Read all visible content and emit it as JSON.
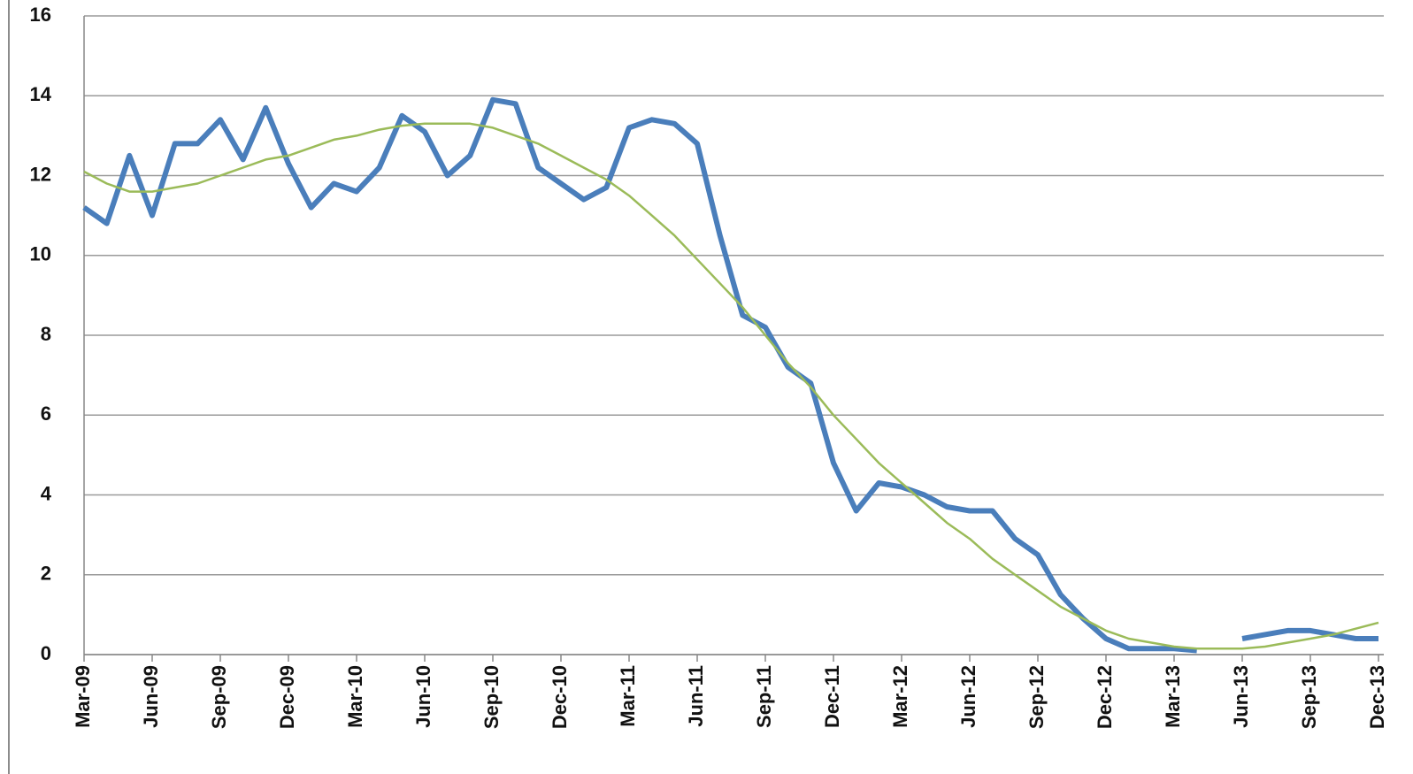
{
  "chart_data": {
    "type": "line",
    "categories": [
      "Mar-09",
      null,
      null,
      "Jun-09",
      null,
      null,
      "Sep-09",
      null,
      null,
      "Dec-09",
      null,
      null,
      "Mar-10",
      null,
      null,
      "Jun-10",
      null,
      null,
      "Sep-10",
      null,
      null,
      "Dec-10",
      null,
      null,
      "Mar-11",
      null,
      null,
      "Jun-11",
      null,
      null,
      "Sep-11",
      null,
      null,
      "Dec-11",
      null,
      null,
      "Mar-12",
      null,
      null,
      "Jun-12",
      null,
      null,
      "Sep-12",
      null,
      null,
      "Dec-12",
      null,
      null,
      "Mar-13",
      null,
      null,
      "Jun-13",
      null,
      null,
      "Sep-13",
      null,
      null,
      "Dec-13"
    ],
    "series": [
      {
        "color": "#4a7ebb",
        "width": 6,
        "values": [
          11.2,
          10.8,
          12.5,
          11.0,
          12.8,
          12.8,
          13.4,
          12.4,
          13.7,
          12.3,
          11.2,
          11.8,
          11.6,
          12.2,
          13.5,
          13.1,
          12.0,
          12.5,
          13.9,
          13.8,
          12.2,
          11.8,
          11.4,
          11.7,
          13.2,
          13.4,
          13.3,
          12.8,
          10.5,
          8.5,
          8.2,
          7.2,
          6.8,
          4.8,
          3.6,
          4.3,
          4.2,
          4.0,
          3.7,
          3.6,
          3.6,
          2.9,
          2.5,
          1.5,
          0.9,
          0.4,
          0.15,
          0.15,
          0.15,
          0.1,
          null,
          0.4,
          0.5,
          0.6,
          0.6,
          0.5,
          0.4,
          0.4
        ]
      },
      {
        "color": "#9bbb59",
        "width": 2.5,
        "values": [
          12.1,
          11.8,
          11.6,
          11.6,
          11.7,
          11.8,
          12.0,
          12.2,
          12.4,
          12.5,
          12.7,
          12.9,
          13.0,
          13.15,
          13.25,
          13.3,
          13.3,
          13.3,
          13.2,
          13.0,
          12.8,
          12.5,
          12.2,
          11.9,
          11.5,
          11.0,
          10.5,
          9.9,
          9.3,
          8.7,
          8.0,
          7.3,
          6.7,
          6.0,
          5.4,
          4.8,
          4.3,
          3.8,
          3.3,
          2.9,
          2.4,
          2.0,
          1.6,
          1.2,
          0.9,
          0.6,
          0.4,
          0.3,
          0.2,
          0.15,
          0.15,
          0.15,
          0.2,
          0.3,
          0.4,
          0.5,
          0.65,
          0.8
        ]
      }
    ],
    "ylim": [
      0,
      16
    ],
    "yticks": [
      0,
      2,
      4,
      6,
      8,
      10,
      12,
      14,
      16
    ],
    "grid": true
  }
}
